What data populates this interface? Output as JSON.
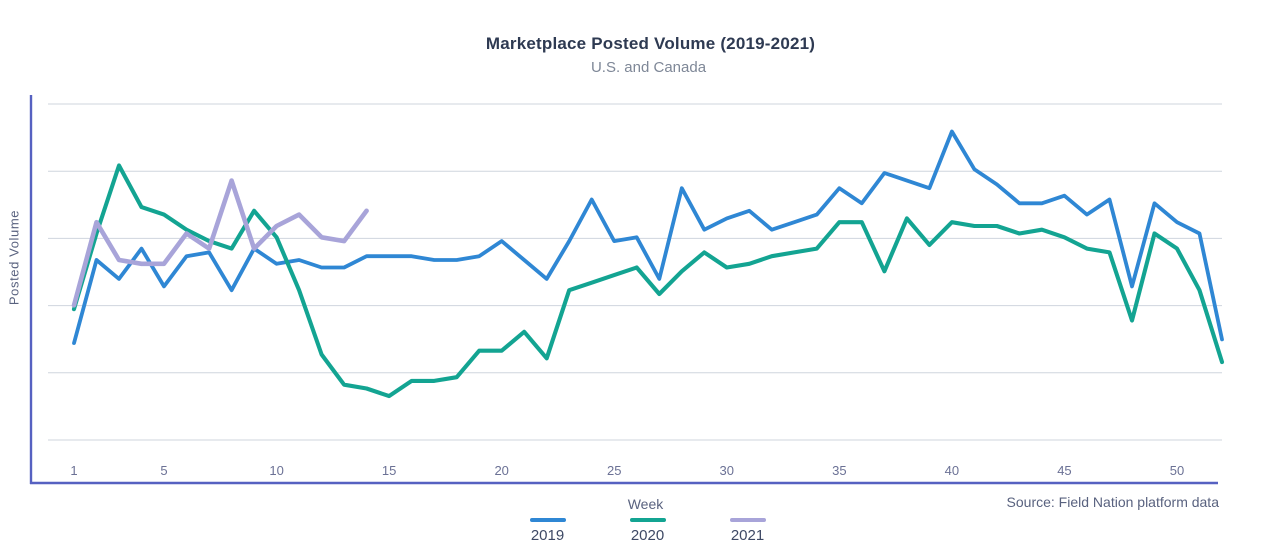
{
  "chart": {
    "title": "Marketplace Posted Volume (2019-2021)",
    "subtitle": "U.S. and Canada",
    "xlabel": "Week",
    "ylabel": "Posted  Volume",
    "source": "Source: Field Nation platform data"
  },
  "colors": {
    "axis": "#5661C1",
    "grid": "#CFD5DE",
    "tick_text": "#6B7195",
    "series_2019": "#2F87D4",
    "series_2020": "#13A492",
    "series_2021": "#A8A4D9"
  },
  "chart_data": {
    "type": "line",
    "title": "Marketplace Posted Volume (2019-2021)",
    "subtitle": "U.S. and Canada",
    "xlabel": "Week",
    "ylabel": "Posted Volume",
    "x_range": [
      1,
      52
    ],
    "x_ticks": [
      1,
      5,
      10,
      15,
      20,
      25,
      30,
      35,
      40,
      45,
      50
    ],
    "y_axis_labeled": false,
    "y_scale_note": "y axis has no tick labels; values are a relative posted-volume index 0-100 estimated from gridlines",
    "ylim": [
      0,
      103
    ],
    "grid": "horizontal gridlines only (6 lines)",
    "legend_position": "bottom center",
    "series": [
      {
        "name": "2019",
        "color": "#2F87D4",
        "x": [
          1,
          2,
          3,
          4,
          5,
          6,
          7,
          8,
          9,
          10,
          11,
          12,
          13,
          14,
          15,
          16,
          17,
          18,
          19,
          20,
          21,
          22,
          23,
          24,
          25,
          26,
          27,
          28,
          29,
          30,
          31,
          32,
          33,
          34,
          35,
          36,
          37,
          38,
          39,
          40,
          41,
          42,
          43,
          44,
          45,
          46,
          47,
          48,
          49,
          50,
          51,
          52
        ],
        "values": [
          37,
          59,
          54,
          62,
          52,
          60,
          61,
          51,
          62,
          58,
          59,
          57,
          57,
          60,
          60,
          60,
          59,
          59,
          60,
          64,
          59,
          54,
          64,
          75,
          64,
          65,
          54,
          78,
          67,
          70,
          72,
          67,
          69,
          71,
          78,
          74,
          82,
          80,
          78,
          93,
          83,
          79,
          74,
          74,
          76,
          71,
          75,
          52,
          74,
          69,
          66,
          38
        ]
      },
      {
        "name": "2020",
        "color": "#13A492",
        "x": [
          1,
          2,
          3,
          4,
          5,
          6,
          7,
          8,
          9,
          10,
          11,
          12,
          13,
          14,
          15,
          16,
          17,
          18,
          19,
          20,
          21,
          22,
          23,
          24,
          25,
          26,
          27,
          28,
          29,
          30,
          31,
          32,
          33,
          34,
          35,
          36,
          37,
          38,
          39,
          40,
          41,
          42,
          43,
          44,
          45,
          46,
          47,
          48,
          49,
          50,
          51,
          52
        ],
        "values": [
          46,
          66,
          84,
          73,
          71,
          67,
          64,
          62,
          72,
          65,
          51,
          34,
          26,
          25,
          23,
          27,
          27,
          28,
          35,
          35,
          40,
          33,
          51,
          53,
          55,
          57,
          50,
          56,
          61,
          57,
          58,
          60,
          61,
          62,
          69,
          69,
          56,
          70,
          63,
          69,
          68,
          68,
          66,
          67,
          65,
          62,
          61,
          43,
          66,
          62,
          51,
          32
        ]
      },
      {
        "name": "2021",
        "color": "#A8A4D9",
        "x": [
          1,
          2,
          3,
          4,
          5,
          6,
          7,
          8,
          9,
          10,
          11,
          12,
          13,
          14
        ],
        "values": [
          47,
          69,
          59,
          58,
          58,
          66,
          62,
          80,
          62,
          68,
          71,
          65,
          64,
          72
        ]
      }
    ]
  }
}
